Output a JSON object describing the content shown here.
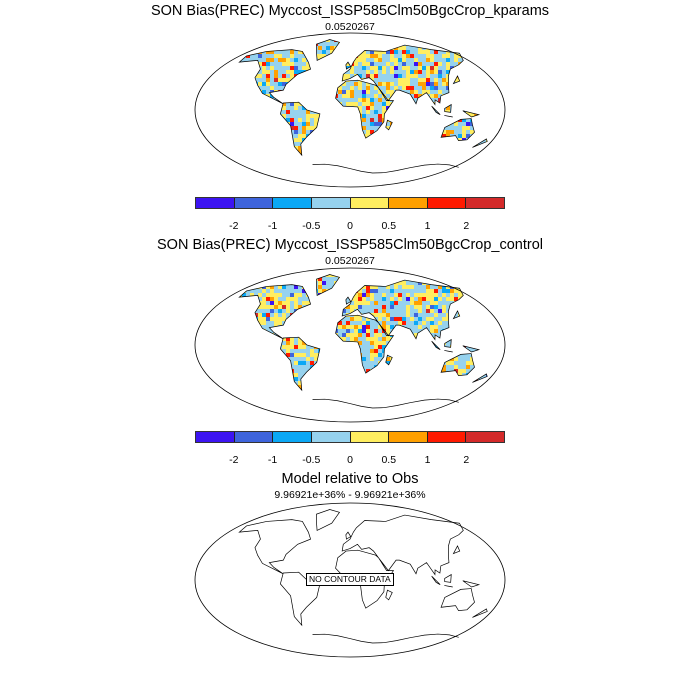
{
  "panels": [
    {
      "title": "SON Bias(PREC) Myccost_ISSP585Clm50BgcCrop_kparams",
      "subtitle": "0.0520267",
      "filled": true
    },
    {
      "title": "SON Bias(PREC) Myccost_ISSP585Clm50BgcCrop_control",
      "subtitle": "0.0520267",
      "filled": true
    },
    {
      "title": "Model relative to Obs",
      "subtitle": "9.96921e+36% - 9.96921e+36%",
      "filled": false,
      "message": "NO CONTOUR DATA"
    }
  ],
  "colorbar": {
    "labels": [
      "-2",
      "-1",
      "-0.5",
      "0",
      "0.5",
      "1",
      "2"
    ],
    "colors": [
      "#3c14f2",
      "#3e64dc",
      "#0ba8f5",
      "#96d2ee",
      "#ffee60",
      "#ffa000",
      "#ff1a00",
      "#d42a2a"
    ]
  }
}
